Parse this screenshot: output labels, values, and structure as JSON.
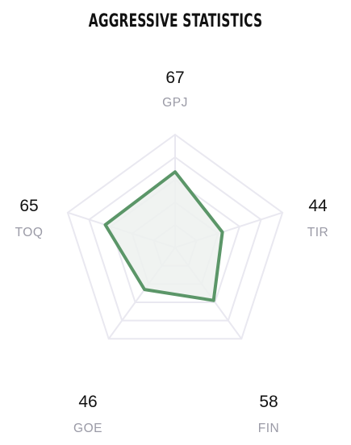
{
  "title": "AGGRESSIVE STATISTICS",
  "chart_data": {
    "type": "radar",
    "title": "AGGRESSIVE STATISTICS",
    "axes": [
      "GPJ",
      "TIR",
      "FIN",
      "GOE",
      "TOQ"
    ],
    "values": [
      67,
      44,
      58,
      46,
      65
    ],
    "range": [
      0,
      100
    ],
    "rings": 5,
    "grid": true,
    "colors": {
      "series_stroke": "#5b9668",
      "series_fill": "#edf1ee",
      "grid": "#e9e8f0",
      "value_text": "#111111",
      "label_text": "#9a9aa6"
    }
  }
}
